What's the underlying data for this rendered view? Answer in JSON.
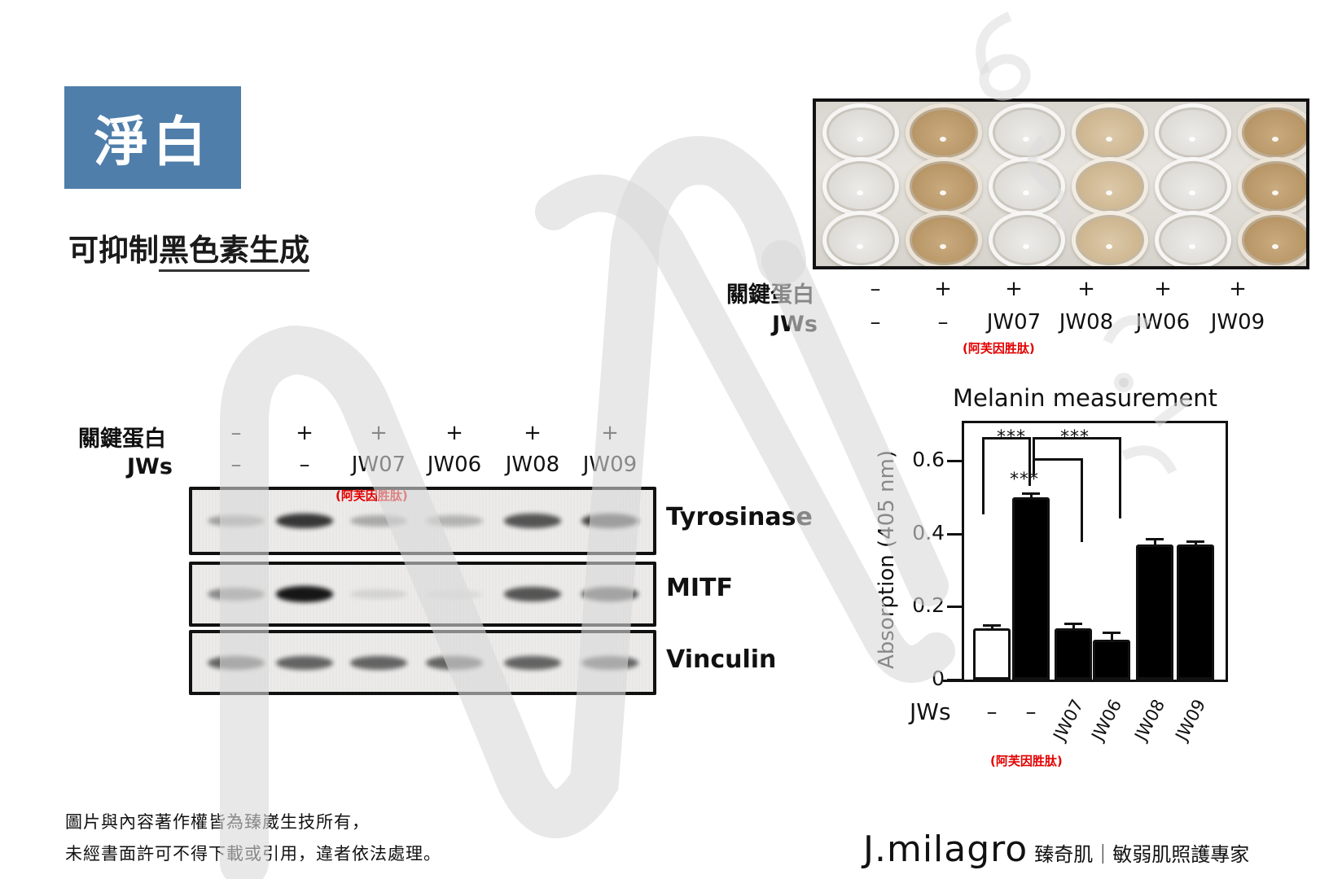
{
  "title": {
    "label": "淨白",
    "bg_color": "#4f7eaa"
  },
  "subtitle": {
    "prefix": "可抑制",
    "underlined": "黑色素生成"
  },
  "well_plate": {
    "rows": 3,
    "columns": [
      {
        "protein": "–",
        "jws": "–",
        "color": "clear"
      },
      {
        "protein": "+",
        "jws": "–",
        "color": "brown"
      },
      {
        "protein": "+",
        "jws": "JW07",
        "color": "clear"
      },
      {
        "protein": "+",
        "jws": "JW08",
        "color": "brown"
      },
      {
        "protein": "+",
        "jws": "JW06",
        "color": "clear"
      },
      {
        "protein": "+",
        "jws": "JW09",
        "color": "brown"
      }
    ],
    "row_label_protein": "關鍵蛋白",
    "row_label_jws": "JWs",
    "note": "(阿芙因胜肽)"
  },
  "western_blot": {
    "row_label_protein": "關鍵蛋白",
    "row_label_jws": "JWs",
    "lanes": [
      {
        "protein": "–",
        "jws": "–"
      },
      {
        "protein": "+",
        "jws": "–"
      },
      {
        "protein": "+",
        "jws": "JW07"
      },
      {
        "protein": "+",
        "jws": "JW06"
      },
      {
        "protein": "+",
        "jws": "JW08"
      },
      {
        "protein": "+",
        "jws": "JW09"
      }
    ],
    "note": "(阿芙因胜肽)",
    "proteins": [
      {
        "name": "Tyrosinase",
        "intensities": [
          0.45,
          0.85,
          0.4,
          0.35,
          0.75,
          0.8
        ]
      },
      {
        "name": "MITF",
        "intensities": [
          0.55,
          0.95,
          0.15,
          0.1,
          0.75,
          0.75
        ]
      },
      {
        "name": "Vinculin",
        "intensities": [
          0.7,
          0.7,
          0.7,
          0.7,
          0.7,
          0.7
        ]
      }
    ]
  },
  "chart_data": {
    "type": "bar",
    "title": "Melanin measurement",
    "xlabel": "JWs",
    "ylabel": "Absorption (405 nm)",
    "ylim": [
      0,
      0.6
    ],
    "yticks": [
      "0",
      "0.2",
      "0.4",
      "0.6"
    ],
    "categories": [
      "–",
      "–",
      "JW07",
      "JW06",
      "JW08",
      "JW09"
    ],
    "values": [
      0.14,
      0.5,
      0.14,
      0.11,
      0.37,
      0.37
    ],
    "errors": [
      0.01,
      0.01,
      0.015,
      0.02,
      0.015,
      0.01
    ],
    "fills": [
      "white",
      "black",
      "black",
      "black",
      "black",
      "black"
    ],
    "significance": [
      {
        "from": 0,
        "to": 1,
        "label": "***"
      },
      {
        "from": 1,
        "to": 2,
        "label": "***"
      },
      {
        "from": 1,
        "to": 3,
        "label": "***"
      }
    ],
    "note": "(阿芙因胜肽)",
    "legend": null,
    "grid": false
  },
  "footer": {
    "line1": "圖片與內容著作權皆為臻崴生技所有，",
    "line2": "未經書面許可不得下載或引用，違者依法處理。"
  },
  "brand": {
    "name": "J.milagro",
    "tagline": "臻奇肌｜敏弱肌照護專家"
  }
}
